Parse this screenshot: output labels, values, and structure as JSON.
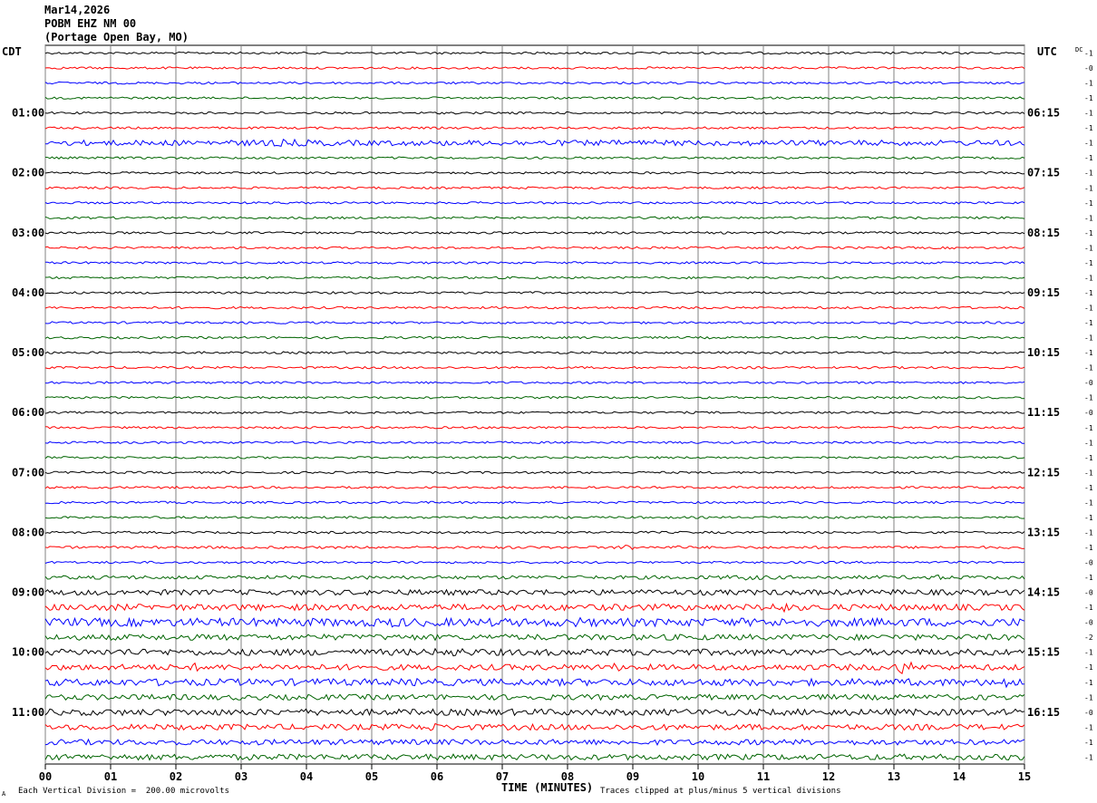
{
  "header": {
    "date": "Mar14,2026",
    "station": "POBM EHZ NM 00",
    "location": "(Portage Open Bay, MO)"
  },
  "footer": {
    "scale_note": "Each Vertical Division =  200.00 microvolts",
    "clip_note": "Traces clipped at plus/minus 5 vertical divisions",
    "corner_mark": "A"
  },
  "chart_data": {
    "type": "line",
    "title": "",
    "xlabel": "TIME (MINUTES)",
    "ylabel_left": "CDT",
    "ylabel_right": "UTC",
    "dc_label": "DC",
    "xlim": [
      0,
      15
    ],
    "x_ticks": [
      "00",
      "01",
      "02",
      "03",
      "04",
      "05",
      "06",
      "07",
      "08",
      "09",
      "10",
      "11",
      "12",
      "13",
      "14",
      "15"
    ],
    "grid": true,
    "trace_colors": [
      "#000000",
      "#ff0000",
      "#0000ff",
      "#006400"
    ],
    "num_traces": 48,
    "left_hour_labels": [
      {
        "trace": 4,
        "label": "01:00"
      },
      {
        "trace": 8,
        "label": "02:00"
      },
      {
        "trace": 12,
        "label": "03:00"
      },
      {
        "trace": 16,
        "label": "04:00"
      },
      {
        "trace": 20,
        "label": "05:00"
      },
      {
        "trace": 24,
        "label": "06:00"
      },
      {
        "trace": 28,
        "label": "07:00"
      },
      {
        "trace": 32,
        "label": "08:00"
      },
      {
        "trace": 36,
        "label": "09:00"
      },
      {
        "trace": 40,
        "label": "10:00"
      },
      {
        "trace": 44,
        "label": "11:00"
      }
    ],
    "right_hour_labels": [
      {
        "trace": 4,
        "label": "06:15"
      },
      {
        "trace": 8,
        "label": "07:15"
      },
      {
        "trace": 12,
        "label": "08:15"
      },
      {
        "trace": 16,
        "label": "09:15"
      },
      {
        "trace": 20,
        "label": "10:15"
      },
      {
        "trace": 24,
        "label": "11:15"
      },
      {
        "trace": 28,
        "label": "12:15"
      },
      {
        "trace": 32,
        "label": "13:15"
      },
      {
        "trace": 36,
        "label": "14:15"
      },
      {
        "trace": 40,
        "label": "15:15"
      },
      {
        "trace": 44,
        "label": "16:15"
      }
    ],
    "dc_offsets": [
      "-1",
      "-0",
      "-1",
      "-1",
      "-1",
      "-1",
      "-1",
      "-1",
      "-1",
      "-1",
      "-1",
      "-1",
      "-1",
      "-1",
      "-1",
      "-1",
      "-1",
      "-1",
      "-1",
      "-1",
      "-1",
      "-1",
      "-0",
      "-1",
      "-0",
      "-1",
      "-1",
      "-1",
      "-1",
      "-1",
      "-1",
      "-1",
      "-1",
      "-1",
      "-0",
      "-1",
      "-0",
      "-1",
      "-0",
      "-2",
      "-1",
      "-1",
      "-1",
      "-1",
      "-0",
      "-1",
      "-1",
      "-1"
    ],
    "noise_amplitude": [
      1.2,
      1.2,
      1.2,
      1.2,
      1.2,
      1.2,
      3.0,
      1.2,
      1.2,
      1.2,
      1.2,
      1.2,
      1.2,
      1.2,
      1.2,
      1.2,
      1.2,
      1.2,
      1.2,
      1.2,
      1.2,
      1.2,
      1.2,
      1.2,
      1.2,
      1.2,
      1.2,
      1.2,
      1.2,
      1.2,
      1.2,
      1.2,
      1.2,
      1.4,
      1.2,
      2.0,
      3.0,
      3.5,
      4.5,
      3.2,
      3.5,
      3.2,
      3.8,
      3.0,
      3.5,
      3.2,
      3.0,
      3.2
    ],
    "events": [
      {
        "trace": 6,
        "start": 2.0,
        "end": 5.4,
        "amp": 4
      },
      {
        "trace": 33,
        "start": 8.8,
        "end": 9.0,
        "amp": 5
      },
      {
        "trace": 33,
        "start": 9.6,
        "end": 9.8,
        "amp": 3
      },
      {
        "trace": 35,
        "start": 10.0,
        "end": 11.5,
        "amp": 3
      },
      {
        "trace": 35,
        "start": 13.2,
        "end": 14.0,
        "amp": 3
      },
      {
        "trace": 37,
        "start": 11.1,
        "end": 11.4,
        "amp": 8
      },
      {
        "trace": 38,
        "start": 0.0,
        "end": 0.5,
        "amp": 6
      },
      {
        "trace": 38,
        "start": 5.0,
        "end": 5.8,
        "amp": 6
      },
      {
        "trace": 38,
        "start": 7.8,
        "end": 8.5,
        "amp": 6
      },
      {
        "trace": 40,
        "start": 1.2,
        "end": 1.4,
        "amp": 6
      },
      {
        "trace": 40,
        "start": 5.5,
        "end": 7.0,
        "amp": 5
      },
      {
        "trace": 41,
        "start": 2.2,
        "end": 2.4,
        "amp": 5
      },
      {
        "trace": 41,
        "start": 8.6,
        "end": 8.9,
        "amp": 5
      },
      {
        "trace": 41,
        "start": 13.0,
        "end": 13.3,
        "amp": 9
      },
      {
        "trace": 42,
        "start": 4.1,
        "end": 4.3,
        "amp": 5
      },
      {
        "trace": 42,
        "start": 5.6,
        "end": 5.8,
        "amp": 5
      },
      {
        "trace": 42,
        "start": 14.5,
        "end": 15.0,
        "amp": 7
      },
      {
        "trace": 45,
        "start": 5.8,
        "end": 6.0,
        "amp": 8
      },
      {
        "trace": 45,
        "start": 2.4,
        "end": 2.7,
        "amp": 4
      }
    ]
  }
}
